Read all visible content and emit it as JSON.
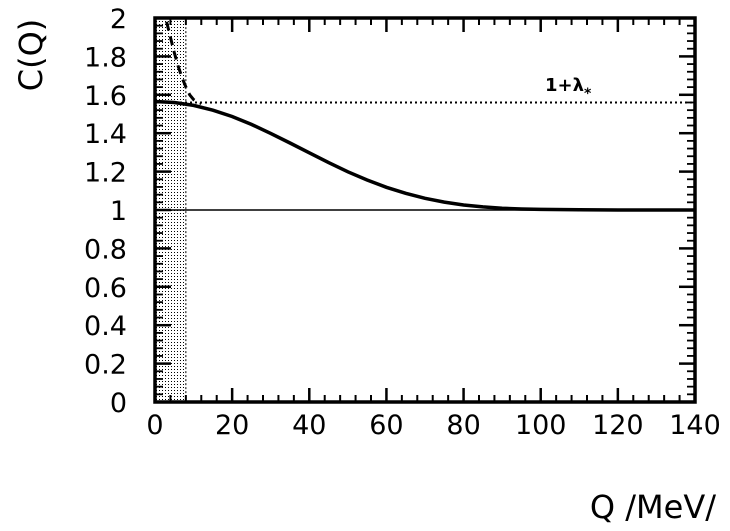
{
  "chart_data": {
    "type": "line",
    "xlabel": "Q /MeV/",
    "ylabel": "C(Q)",
    "xlim": [
      0,
      140
    ],
    "ylim": [
      0,
      2
    ],
    "x_ticks": [
      0,
      20,
      40,
      60,
      80,
      100,
      120,
      140
    ],
    "x_tick_labels": [
      "0",
      "20",
      "40",
      "60",
      "80",
      "100",
      "120",
      "140"
    ],
    "y_ticks": [
      0,
      0.2,
      0.4,
      0.6,
      0.8,
      1,
      1.2,
      1.4,
      1.6,
      1.8,
      2
    ],
    "y_tick_labels": [
      "0",
      "0.2",
      "0.4",
      "0.6",
      "0.8",
      "1",
      "1.2",
      "1.4",
      "1.6",
      "1.8",
      "2"
    ],
    "grid": false,
    "legend": "none",
    "shaded_region": {
      "x": [
        0,
        8
      ],
      "style": "dotted-hatch"
    },
    "series": [
      {
        "style": "solid",
        "x": [
          0,
          5,
          10,
          15,
          20,
          25,
          30,
          35,
          40,
          45,
          50,
          55,
          60,
          65,
          70,
          75,
          80,
          85,
          90,
          95,
          100,
          110,
          120,
          130,
          140
        ],
        "y": [
          1.565,
          1.56,
          1.545,
          1.52,
          1.487,
          1.446,
          1.399,
          1.349,
          1.298,
          1.247,
          1.199,
          1.156,
          1.118,
          1.087,
          1.061,
          1.041,
          1.026,
          1.016,
          1.009,
          1.005,
          1.003,
          1.001,
          1.0,
          1.0,
          1.0
        ]
      },
      {
        "style": "dashed",
        "x": [
          3,
          4,
          5,
          6,
          7,
          8,
          9,
          10,
          11,
          12
        ],
        "y": [
          1.98,
          1.9,
          1.82,
          1.75,
          1.69,
          1.64,
          1.6,
          1.575,
          1.562,
          1.555
        ]
      }
    ],
    "reference_lines": [
      {
        "y": 1.56,
        "style": "dotted",
        "label": "1+λ*"
      },
      {
        "y": 1.0,
        "style": "thin-solid"
      }
    ]
  }
}
